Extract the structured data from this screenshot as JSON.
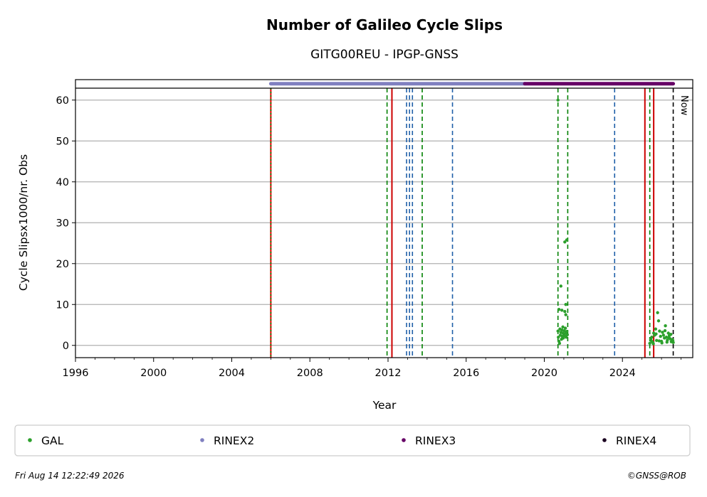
{
  "chart_data": {
    "type": "scatter",
    "title": "Number of Galileo Cycle Slips",
    "subtitle": "GITG00REU - IPGP-GNSS",
    "xlabel": "Year",
    "ylabel": "Cycle Slipsx1000/nr. Obs",
    "xlim": [
      1996,
      2027.6
    ],
    "ylim": [
      -3,
      65
    ],
    "x_ticks": [
      1996,
      2000,
      2004,
      2008,
      2012,
      2016,
      2020,
      2024
    ],
    "y_ticks": [
      0,
      10,
      20,
      30,
      40,
      50,
      60
    ],
    "grid": "horizontal",
    "legend_placement": "below",
    "series": [
      {
        "name": "GAL",
        "color": "#2ca02c",
        "points": [
          [
            2020.7,
            60.0
          ],
          [
            2020.85,
            14.5
          ],
          [
            2021.05,
            25.3
          ],
          [
            2021.15,
            25.8
          ],
          [
            2021.1,
            10.0
          ],
          [
            2020.75,
            8.8
          ],
          [
            2020.9,
            8.6
          ],
          [
            2021.05,
            8.3
          ],
          [
            2021.1,
            7.5
          ],
          [
            2020.95,
            4.5
          ],
          [
            2020.7,
            3.5
          ],
          [
            2020.72,
            2.0
          ],
          [
            2020.75,
            1.0
          ],
          [
            2020.8,
            4.0
          ],
          [
            2020.82,
            2.5
          ],
          [
            2020.85,
            3.2
          ],
          [
            2020.88,
            1.5
          ],
          [
            2020.9,
            3.8
          ],
          [
            2020.92,
            2.2
          ],
          [
            2020.95,
            3.0
          ],
          [
            2020.97,
            1.8
          ],
          [
            2021.0,
            2.8
          ],
          [
            2021.02,
            3.6
          ],
          [
            2021.05,
            2.4
          ],
          [
            2021.08,
            4.2
          ],
          [
            2021.1,
            3.1
          ],
          [
            2021.12,
            2.0
          ],
          [
            2021.15,
            3.4
          ],
          [
            2021.18,
            2.6
          ],
          [
            2020.78,
            0.5
          ],
          [
            2025.4,
            0.5
          ],
          [
            2025.45,
            1.5
          ],
          [
            2025.5,
            2.0
          ],
          [
            2025.55,
            0.8
          ],
          [
            2025.6,
            3.0
          ],
          [
            2025.65,
            2.5
          ],
          [
            2025.7,
            4.0
          ],
          [
            2025.75,
            1.2
          ],
          [
            2025.8,
            8.0
          ],
          [
            2025.85,
            6.0
          ],
          [
            2025.9,
            3.5
          ],
          [
            2025.95,
            2.2
          ],
          [
            2026.0,
            1.0
          ],
          [
            2026.05,
            3.2
          ],
          [
            2026.1,
            2.5
          ],
          [
            2026.15,
            1.8
          ],
          [
            2026.2,
            4.8
          ],
          [
            2026.25,
            2.0
          ],
          [
            2026.3,
            1.3
          ],
          [
            2026.35,
            3.0
          ],
          [
            2026.4,
            2.4
          ],
          [
            2026.45,
            1.6
          ],
          [
            2026.5,
            0.9
          ],
          [
            2026.55,
            1.4
          ],
          [
            2026.6,
            0.7
          ],
          [
            2025.5,
            1.0
          ],
          [
            2025.58,
            0.4
          ],
          [
            2025.72,
            2.8
          ],
          [
            2025.88,
            1.1
          ],
          [
            2026.02,
            0.6
          ],
          [
            2026.18,
            3.6
          ],
          [
            2026.28,
            0.8
          ],
          [
            2026.38,
            1.9
          ],
          [
            2026.48,
            2.7
          ],
          [
            2026.58,
            1.2
          ]
        ]
      },
      {
        "name": "RINEX2",
        "color": "#8080c0",
        "x_range": [
          2006.0,
          2019.0
        ],
        "y": 64
      },
      {
        "name": "RINEX3",
        "color": "#660066",
        "x_range": [
          2019.0,
          2026.6
        ],
        "y": 64
      },
      {
        "name": "RINEX4",
        "color": "#1a0020",
        "points": []
      }
    ],
    "vertical_lines": [
      {
        "x": 2006.0,
        "color": "#e00000",
        "style": "solid"
      },
      {
        "x": 2006.0,
        "color": "#008000",
        "style": "dotted"
      },
      {
        "x": 2012.2,
        "color": "#cc0000",
        "style": "solid"
      },
      {
        "x": 2011.95,
        "color": "#008000",
        "style": "dashed"
      },
      {
        "x": 2013.75,
        "color": "#008000",
        "style": "dashed"
      },
      {
        "x": 2012.95,
        "color": "#1f5fa8",
        "style": "dashed"
      },
      {
        "x": 2013.1,
        "color": "#1f5fa8",
        "style": "dashed"
      },
      {
        "x": 2013.25,
        "color": "#1f5fa8",
        "style": "dashed"
      },
      {
        "x": 2015.3,
        "color": "#1f5fa8",
        "style": "dashed"
      },
      {
        "x": 2020.7,
        "color": "#008000",
        "style": "dashed"
      },
      {
        "x": 2021.2,
        "color": "#008000",
        "style": "dashed"
      },
      {
        "x": 2023.6,
        "color": "#1f5fa8",
        "style": "dashed"
      },
      {
        "x": 2025.15,
        "color": "#cc0000",
        "style": "solid"
      },
      {
        "x": 2025.6,
        "color": "#cc0000",
        "style": "solid"
      },
      {
        "x": 2025.4,
        "color": "#008000",
        "style": "dashed"
      },
      {
        "x": 2026.6,
        "color": "#000000",
        "style": "dashed"
      }
    ],
    "now_label": "Now",
    "timestamp": "Fri Aug 14 12:22:49 2026",
    "credit": "©GNSS@ROB"
  }
}
